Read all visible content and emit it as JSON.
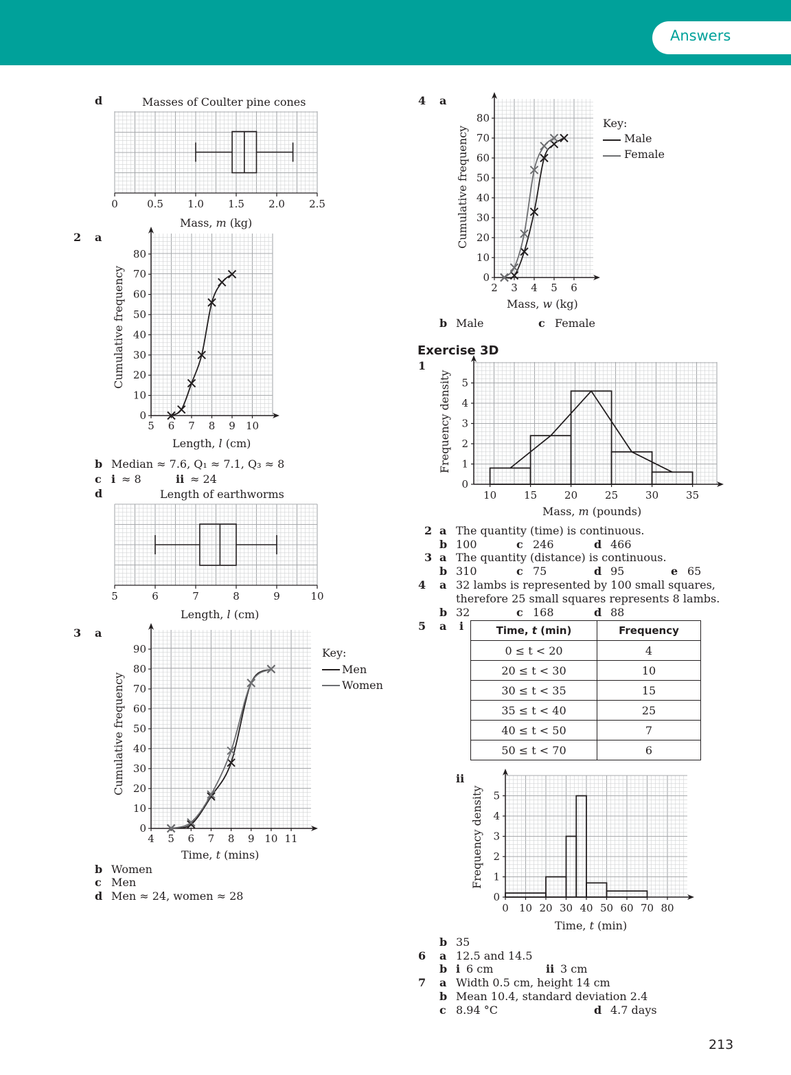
{
  "header": {
    "tab_label": "Answers"
  },
  "page_number": "213",
  "left": {
    "q1d": {
      "part": "d",
      "title": "Masses of Coulter pine cones",
      "xlabel_pre": "Mass, ",
      "xlabel_var": "m",
      "xlabel_unit": " (kg)"
    },
    "q2": {
      "num": "2",
      "part_a": "a",
      "ylabel": "Cumulative frequency",
      "xlabel_pre": "Length, ",
      "xlabel_var": "l",
      "xlabel_unit": " (cm)",
      "b_label": "b",
      "b_text": "Median ≈ 7.6, Q₁ ≈ 7.1, Q₃ ≈ 8",
      "c_label": "c",
      "c_i": "i",
      "c_i_text": "≈ 8",
      "c_ii": "ii",
      "c_ii_text": "≈ 24",
      "d_label": "d",
      "d_title": "Length of earthworms"
    },
    "q3": {
      "num": "3",
      "part_a": "a",
      "ylabel": "Cumulative frequency",
      "xlabel_pre": "Time, ",
      "xlabel_var": "t",
      "xlabel_unit": " (mins)",
      "key_title": "Key:",
      "key_men": "Men",
      "key_women": "Women",
      "b_label": "b",
      "b_text": "Women",
      "c_label": "c",
      "c_text": "Men",
      "d_label": "d",
      "d_text": "Men ≈ 24, women ≈ 28"
    }
  },
  "right": {
    "q4": {
      "num": "4",
      "part_a": "a",
      "ylabel": "Cumulative frequency",
      "xlabel_pre": "Mass, ",
      "xlabel_var": "w",
      "xlabel_unit": " (kg)",
      "key_title": "Key:",
      "key_male": "Male",
      "key_female": "Female",
      "b_label": "b",
      "b_text": "Male",
      "c_label": "c",
      "c_text": "Female"
    },
    "exercise_title": "Exercise 3D",
    "ex1": {
      "num": "1",
      "ylabel": "Frequency density",
      "xlabel_pre": "Mass, ",
      "xlabel_var": "m",
      "xlabel_unit": " (pounds)"
    },
    "ex2": {
      "num": "2",
      "a": "a",
      "a_text": "The quantity (time) is continuous.",
      "b": "b",
      "b_text": "100",
      "c": "c",
      "c_text": "246",
      "d": "d",
      "d_text": "466"
    },
    "ex3": {
      "num": "3",
      "a": "a",
      "a_text": "The quantity (distance) is continuous.",
      "b": "b",
      "b_text": "310",
      "c": "c",
      "c_text": "75",
      "d": "d",
      "d_text": "95",
      "e": "e",
      "e_text": "65"
    },
    "ex4": {
      "num": "4",
      "a": "a",
      "a_line1": "32 lambs is represented by 100 small squares,",
      "a_line2": "therefore 25 small squares represents 8 lambs.",
      "b": "b",
      "b_text": "32",
      "c": "c",
      "c_text": "168",
      "d": "d",
      "d_text": "88"
    },
    "ex5": {
      "num": "5",
      "a": "a",
      "i": "i",
      "ii": "ii",
      "table_headers": [
        "Time, t (min)",
        "Frequency"
      ],
      "table_rows": [
        [
          "0 ≤ t < 20",
          "4"
        ],
        [
          "20 ≤ t < 30",
          "10"
        ],
        [
          "30 ≤ t < 35",
          "15"
        ],
        [
          "35 ≤ t < 40",
          "25"
        ],
        [
          "40 ≤ t < 50",
          "7"
        ],
        [
          "50 ≤ t < 70",
          "6"
        ]
      ],
      "ylabel": "Frequency density",
      "xlabel_pre": "Time, ",
      "xlabel_var": "t",
      "xlabel_unit": " (min)",
      "b": "b",
      "b_text": "35"
    },
    "ex6": {
      "num": "6",
      "a": "a",
      "a_text": "12.5 and 14.5",
      "b": "b",
      "b_i": "i",
      "b_i_text": "6 cm",
      "b_ii": "ii",
      "b_ii_text": "3 cm"
    },
    "ex7": {
      "num": "7",
      "a": "a",
      "a_text": "Width 0.5 cm, height 14 cm",
      "b": "b",
      "b_text": "Mean 10.4, standard deviation 2.4",
      "c": "c",
      "c_text": "8.94 °C",
      "d": "d",
      "d_text": "4.7 days"
    }
  },
  "chart_data": [
    {
      "id": "pinecones-boxplot",
      "type": "boxplot",
      "title": "Masses of Coulter pine cones",
      "xlabel": "Mass, m (kg)",
      "x_ticks": [
        "0",
        "0.5",
        "1.0",
        "1.5",
        "2.0",
        "2.5"
      ],
      "xlim": [
        0,
        2.5
      ],
      "min": 1.0,
      "q1": 1.45,
      "median": 1.6,
      "q3": 1.75,
      "max": 2.2
    },
    {
      "id": "earthworm-cumfreq",
      "type": "line",
      "xlabel": "Length, l (cm)",
      "ylabel": "Cumulative frequency",
      "xlim": [
        5,
        11
      ],
      "ylim": [
        0,
        80
      ],
      "x_ticks": [
        "5",
        "6",
        "7",
        "8",
        "9",
        "10"
      ],
      "y_ticks": [
        "0",
        "10",
        "20",
        "30",
        "40",
        "50",
        "60",
        "70",
        "80"
      ],
      "series": [
        {
          "x": [
            6,
            6.5,
            7,
            7.5,
            8,
            8.5,
            9
          ],
          "y": [
            0,
            3,
            16,
            30,
            56,
            66,
            70
          ]
        }
      ]
    },
    {
      "id": "earthworm-boxplot",
      "type": "boxplot",
      "title": "Length of earthworms",
      "xlabel": "Length, l (cm)",
      "x_ticks": [
        "5",
        "6",
        "7",
        "8",
        "9",
        "10"
      ],
      "xlim": [
        5,
        10
      ],
      "min": 6,
      "q1": 7.1,
      "median": 7.6,
      "q3": 8,
      "max": 9
    },
    {
      "id": "time-cumfreq",
      "type": "line",
      "xlabel": "Time, t (mins)",
      "ylabel": "Cumulative frequency",
      "xlim": [
        4,
        12
      ],
      "ylim": [
        0,
        95
      ],
      "x_ticks": [
        "4",
        "5",
        "6",
        "7",
        "8",
        "9",
        "10",
        "11"
      ],
      "y_ticks": [
        "0",
        "10",
        "20",
        "30",
        "40",
        "50",
        "60",
        "70",
        "80",
        "90"
      ],
      "series": [
        {
          "name": "Men",
          "color": "#231f20",
          "x": [
            5,
            6,
            7,
            8,
            9,
            10
          ],
          "y": [
            0,
            2,
            16,
            33,
            73,
            80
          ]
        },
        {
          "name": "Women",
          "color": "#6d6e71",
          "x": [
            5,
            6,
            7,
            8,
            9,
            10
          ],
          "y": [
            0,
            3,
            17,
            39,
            73,
            80
          ]
        }
      ]
    },
    {
      "id": "mass-cumfreq",
      "type": "line",
      "xlabel": "Mass, w (kg)",
      "ylabel": "Cumulative frequency",
      "xlim": [
        2,
        7
      ],
      "ylim": [
        0,
        90
      ],
      "x_ticks": [
        "2",
        "3",
        "4",
        "5",
        "6"
      ],
      "y_ticks": [
        "0",
        "10",
        "20",
        "30",
        "40",
        "50",
        "60",
        "70",
        "80"
      ],
      "series": [
        {
          "name": "Male",
          "color": "#231f20",
          "x": [
            2.5,
            3,
            3.5,
            4,
            4.5,
            5,
            5.5
          ],
          "y": [
            0,
            1,
            13,
            33,
            60,
            67,
            70
          ]
        },
        {
          "name": "Female",
          "color": "#6d6e71",
          "x": [
            2.5,
            3,
            3.5,
            4,
            4.5,
            5
          ],
          "y": [
            0,
            5,
            22,
            54,
            66,
            70
          ]
        }
      ]
    },
    {
      "id": "mass-histogram",
      "type": "bar",
      "xlabel": "Mass, m (pounds)",
      "ylabel": "Frequency density",
      "xlim": [
        8,
        38
      ],
      "ylim": [
        0,
        6
      ],
      "x_ticks": [
        "10",
        "15",
        "20",
        "25",
        "30",
        "35"
      ],
      "y_ticks": [
        "0",
        "1",
        "2",
        "3",
        "4",
        "5"
      ],
      "bins": [
        [
          10,
          15
        ],
        [
          15,
          20
        ],
        [
          20,
          25
        ],
        [
          25,
          30
        ],
        [
          30,
          35
        ]
      ],
      "values": [
        0.8,
        2.4,
        4.6,
        1.6,
        0.6
      ],
      "polygon_x": [
        12.5,
        17.5,
        22.5,
        27.5,
        32.5
      ],
      "polygon_y": [
        0.8,
        2.4,
        4.6,
        1.6,
        0.6
      ]
    },
    {
      "id": "time-histogram",
      "type": "bar",
      "xlabel": "Time, t (min)",
      "ylabel": "Frequency density",
      "xlim": [
        0,
        90
      ],
      "ylim": [
        0,
        6
      ],
      "x_ticks": [
        "0",
        "10",
        "20",
        "30",
        "40",
        "50",
        "60",
        "70",
        "80"
      ],
      "y_ticks": [
        "0",
        "1",
        "2",
        "3",
        "4",
        "5"
      ],
      "bins": [
        [
          0,
          20
        ],
        [
          20,
          30
        ],
        [
          30,
          35
        ],
        [
          35,
          40
        ],
        [
          40,
          50
        ],
        [
          50,
          70
        ]
      ],
      "values": [
        0.2,
        1,
        3,
        5,
        0.7,
        0.3
      ]
    }
  ]
}
